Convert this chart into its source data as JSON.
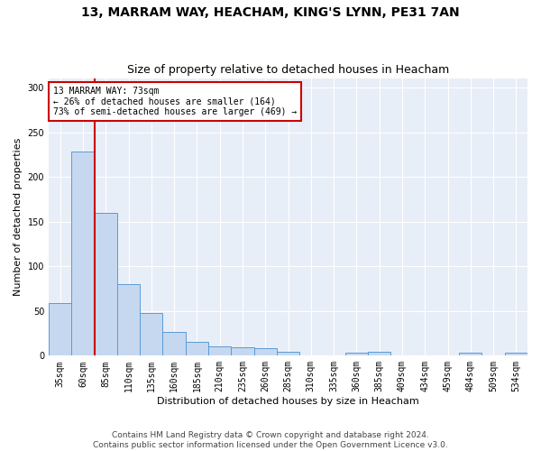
{
  "title": "13, MARRAM WAY, HEACHAM, KING'S LYNN, PE31 7AN",
  "subtitle": "Size of property relative to detached houses in Heacham",
  "xlabel_bottom": "Distribution of detached houses by size in Heacham",
  "ylabel": "Number of detached properties",
  "footer_line1": "Contains HM Land Registry data © Crown copyright and database right 2024.",
  "footer_line2": "Contains public sector information licensed under the Open Government Licence v3.0.",
  "categories": [
    "35sqm",
    "60sqm",
    "85sqm",
    "110sqm",
    "135sqm",
    "160sqm",
    "185sqm",
    "210sqm",
    "235sqm",
    "260sqm",
    "285sqm",
    "310sqm",
    "335sqm",
    "360sqm",
    "385sqm",
    "409sqm",
    "434sqm",
    "459sqm",
    "484sqm",
    "509sqm",
    "534sqm"
  ],
  "values": [
    59,
    228,
    160,
    80,
    48,
    27,
    15,
    10,
    9,
    8,
    4,
    0,
    0,
    3,
    4,
    0,
    0,
    0,
    3,
    0,
    3
  ],
  "bar_color": "#c5d8f0",
  "bar_edge_color": "#5b9bd5",
  "property_line_x": 1.5,
  "annotation_text": "13 MARRAM WAY: 73sqm\n← 26% of detached houses are smaller (164)\n73% of semi-detached houses are larger (469) →",
  "annotation_box_color": "#ffffff",
  "annotation_box_edge_color": "#cc0000",
  "line_color": "#cc0000",
  "ylim": [
    0,
    310
  ],
  "yticks": [
    0,
    50,
    100,
    150,
    200,
    250,
    300
  ],
  "fig_bg_color": "#ffffff",
  "plot_bg_color": "#e8eef7",
  "grid_color": "#ffffff",
  "title_fontsize": 10,
  "subtitle_fontsize": 9,
  "tick_fontsize": 7,
  "ylabel_fontsize": 8,
  "xlabel_fontsize": 8,
  "footer_fontsize": 6.5
}
